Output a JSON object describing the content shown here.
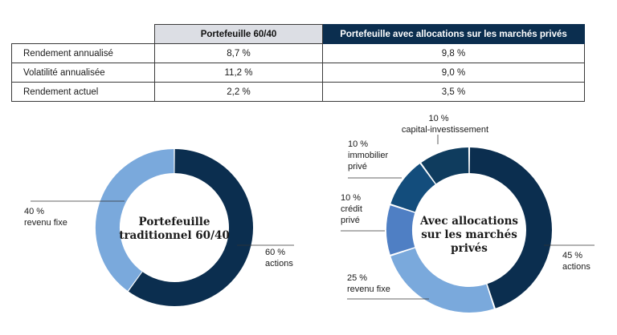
{
  "table": {
    "columns": [
      "Portefeuille 60/40",
      "Portefeuille avec allocations sur les marchés privés"
    ],
    "rows": [
      {
        "label": "Rendement annualisé",
        "values": [
          "8,7 %",
          "9,8 %"
        ]
      },
      {
        "label": "Volatilité annualisée",
        "values": [
          "11,2 %",
          "9,0 %"
        ]
      },
      {
        "label": "Rendement actuel",
        "values": [
          "2,2 %",
          "3,5 %"
        ]
      }
    ]
  },
  "chart_data": [
    {
      "type": "pie",
      "title": "Portefeuille traditionnel 60/40",
      "title_lines": [
        "Portefeuille",
        "traditionnel 60/40"
      ],
      "slices": [
        {
          "name": "actions",
          "value": 60,
          "pct_label": "60 %",
          "color": "#0b2e4f"
        },
        {
          "name": "revenu fixe",
          "value": 40,
          "pct_label": "40 %",
          "color": "#7aa9dc"
        }
      ]
    },
    {
      "type": "pie",
      "title": "Avec allocations sur les marchés privés",
      "title_lines": [
        "Avec allocations",
        "sur les marchés",
        "privés"
      ],
      "slices": [
        {
          "name": "actions",
          "value": 45,
          "pct_label": "45 %",
          "color": "#0b2e4f"
        },
        {
          "name": "revenu fixe",
          "value": 25,
          "pct_label": "25 %",
          "color": "#7aa9dc"
        },
        {
          "name": "crédit privé",
          "value": 10,
          "pct_label": "10 %",
          "color": "#4f7fc4"
        },
        {
          "name": "immobilier privé",
          "value": 10,
          "pct_label": "10 %",
          "color": "#134d7c"
        },
        {
          "name": "capital-investissement",
          "value": 10,
          "pct_label": "10 %",
          "color": "#0f3c5e"
        }
      ]
    }
  ]
}
